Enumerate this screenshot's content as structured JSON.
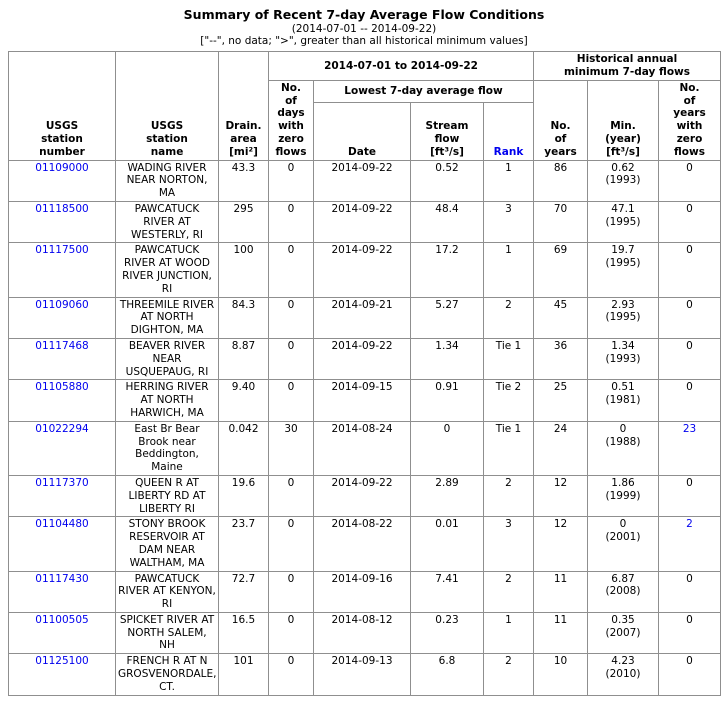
{
  "page": {
    "title": "Summary of Recent 7-day Average Flow Conditions",
    "subtitle": "(2014-07-01 -- 2014-09-22)",
    "legend_note": "[\"--\", no data; \">\", greater than all historical minimum values]"
  },
  "colors": {
    "link_blue": "#0000ee",
    "border_gray": "#8f8f8f",
    "background": "#ffffff"
  },
  "table": {
    "group_headers": {
      "period": "2014-07-01 to 2014-09-22",
      "historical": "Historical annual\nminimum 7-day flows",
      "lowest_flow": "Lowest 7-day average flow"
    },
    "column_headers": {
      "station_number": "USGS\nstation\nnumber",
      "station_name": "USGS\nstation\nname",
      "drain_area": "Drain.\narea\n[mi²]",
      "zero_flow_days": "No.\nof\ndays\nwith\nzero\nflows",
      "date": "Date",
      "stream_flow": "Stream\nflow\n[ft³/s]",
      "rank": "Rank",
      "num_years": "No.\nof\nyears",
      "min_year": "Min.\n(year)\n[ft³/s]",
      "zero_flow_years": "No.\nof\nyears\nwith\nzero\nflows"
    },
    "rows": [
      {
        "station_number": "01109000",
        "station_name": "WADING RIVER NEAR NORTON, MA",
        "drain_area": "43.3",
        "zero_flow_days": "0",
        "date": "2014-09-22",
        "stream_flow": "0.52",
        "rank": "1",
        "num_years": "86",
        "min_year": "0.62\n(1993)",
        "zero_flow_years": "0",
        "zero_flow_years_link": false
      },
      {
        "station_number": "01118500",
        "station_name": "PAWCATUCK RIVER AT WESTERLY, RI",
        "drain_area": "295",
        "zero_flow_days": "0",
        "date": "2014-09-22",
        "stream_flow": "48.4",
        "rank": "3",
        "num_years": "70",
        "min_year": "47.1\n(1995)",
        "zero_flow_years": "0",
        "zero_flow_years_link": false
      },
      {
        "station_number": "01117500",
        "station_name": "PAWCATUCK RIVER AT WOOD RIVER JUNCTION, RI",
        "drain_area": "100",
        "zero_flow_days": "0",
        "date": "2014-09-22",
        "stream_flow": "17.2",
        "rank": "1",
        "num_years": "69",
        "min_year": "19.7\n(1995)",
        "zero_flow_years": "0",
        "zero_flow_years_link": false
      },
      {
        "station_number": "01109060",
        "station_name": "THREEMILE RIVER AT NORTH DIGHTON, MA",
        "drain_area": "84.3",
        "zero_flow_days": "0",
        "date": "2014-09-21",
        "stream_flow": "5.27",
        "rank": "2",
        "num_years": "45",
        "min_year": "2.93\n(1995)",
        "zero_flow_years": "0",
        "zero_flow_years_link": false
      },
      {
        "station_number": "01117468",
        "station_name": "BEAVER RIVER NEAR USQUEPAUG, RI",
        "drain_area": "8.87",
        "zero_flow_days": "0",
        "date": "2014-09-22",
        "stream_flow": "1.34",
        "rank": "Tie 1",
        "num_years": "36",
        "min_year": "1.34\n(1993)",
        "zero_flow_years": "0",
        "zero_flow_years_link": false
      },
      {
        "station_number": "01105880",
        "station_name": "HERRING RIVER AT NORTH HARWICH, MA",
        "drain_area": "9.40",
        "zero_flow_days": "0",
        "date": "2014-09-15",
        "stream_flow": "0.91",
        "rank": "Tie 2",
        "num_years": "25",
        "min_year": "0.51\n(1981)",
        "zero_flow_years": "0",
        "zero_flow_years_link": false
      },
      {
        "station_number": "01022294",
        "station_name": "East Br Bear Brook near Beddington, Maine",
        "drain_area": "0.042",
        "zero_flow_days": "30",
        "date": "2014-08-24",
        "stream_flow": "0",
        "rank": "Tie 1",
        "num_years": "24",
        "min_year": "0\n(1988)",
        "zero_flow_years": "23",
        "zero_flow_years_link": true
      },
      {
        "station_number": "01117370",
        "station_name": "QUEEN R AT LIBERTY RD AT LIBERTY RI",
        "drain_area": "19.6",
        "zero_flow_days": "0",
        "date": "2014-09-22",
        "stream_flow": "2.89",
        "rank": "2",
        "num_years": "12",
        "min_year": "1.86\n(1999)",
        "zero_flow_years": "0",
        "zero_flow_years_link": false
      },
      {
        "station_number": "01104480",
        "station_name": "STONY BROOK RESERVOIR AT DAM NEAR WALTHAM, MA",
        "drain_area": "23.7",
        "zero_flow_days": "0",
        "date": "2014-08-22",
        "stream_flow": "0.01",
        "rank": "3",
        "num_years": "12",
        "min_year": "0\n(2001)",
        "zero_flow_years": "2",
        "zero_flow_years_link": true
      },
      {
        "station_number": "01117430",
        "station_name": "PAWCATUCK RIVER AT KENYON, RI",
        "drain_area": "72.7",
        "zero_flow_days": "0",
        "date": "2014-09-16",
        "stream_flow": "7.41",
        "rank": "2",
        "num_years": "11",
        "min_year": "6.87\n(2008)",
        "zero_flow_years": "0",
        "zero_flow_years_link": false
      },
      {
        "station_number": "01100505",
        "station_name": "SPICKET RIVER AT NORTH SALEM, NH",
        "drain_area": "16.5",
        "zero_flow_days": "0",
        "date": "2014-08-12",
        "stream_flow": "0.23",
        "rank": "1",
        "num_years": "11",
        "min_year": "0.35\n(2007)",
        "zero_flow_years": "0",
        "zero_flow_years_link": false
      },
      {
        "station_number": "01125100",
        "station_name": "FRENCH R AT N GROSVENORDALE, CT.",
        "drain_area": "101",
        "zero_flow_days": "0",
        "date": "2014-09-13",
        "stream_flow": "6.8",
        "rank": "2",
        "num_years": "10",
        "min_year": "4.23\n(2010)",
        "zero_flow_years": "0",
        "zero_flow_years_link": false
      }
    ]
  }
}
